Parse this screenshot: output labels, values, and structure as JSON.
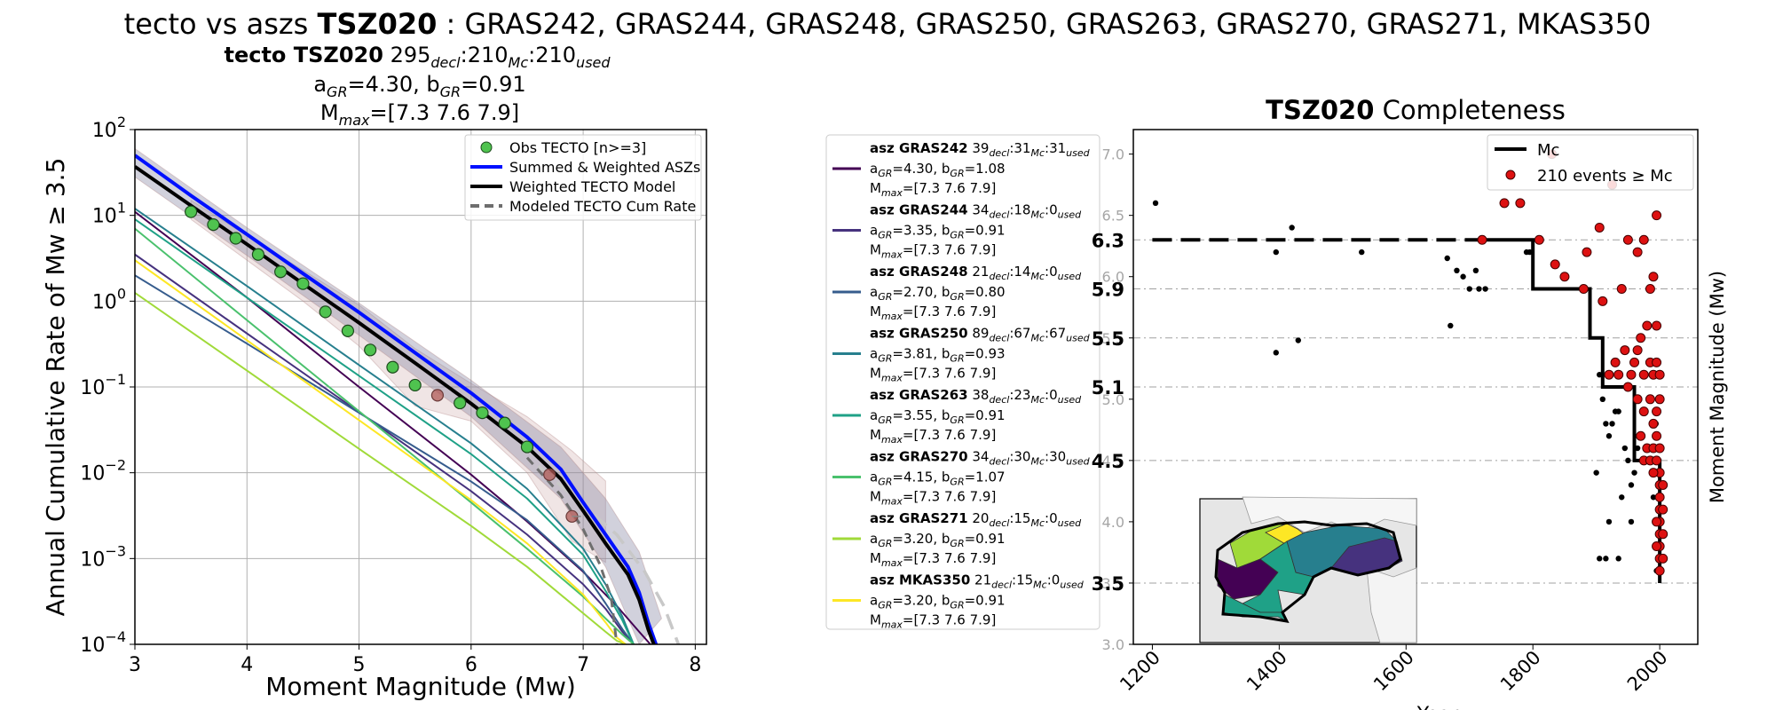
{
  "suptitle": {
    "prefix": "tecto vs aszs ",
    "zone": "TSZ020",
    "rest": " : GRAS242, GRAS244, GRAS248, GRAS250, GRAS263, GRAS270, GRAS271, MKAS350"
  },
  "left_panel": {
    "header_bold": "tecto TSZ020",
    "header_decl": "295",
    "header_mc": "210",
    "header_used": "210",
    "sub_decl": "decl",
    "sub_mc": "Mc",
    "sub_used": "used",
    "line2_a": "4.30",
    "line2_b": "0.91",
    "line3": "=[7.3 7.6 7.9]",
    "a_label": "a",
    "b_label": "b",
    "gr_sub": "GR",
    "mmax_label": "M",
    "max_sub": "max"
  },
  "colors": {
    "summed": "#0010ff",
    "weighted": "#000000",
    "modeled": "#6e6e6e",
    "obs_fill": "#4fc34f",
    "obs_excluded": "#b05a55",
    "red_event": "#dd1111"
  },
  "chart_data": [
    {
      "type": "line",
      "xlabel": "Moment Magnitude (Mw)",
      "ylabel": "Annual Cumulative Rate of Mw  ≥  3.5",
      "xlim": [
        3,
        8.1
      ],
      "ylim": [
        0.0001,
        100
      ],
      "yscale": "log",
      "xticks": [
        "3",
        "4",
        "5",
        "6",
        "7",
        "8"
      ],
      "yticks": [
        {
          "base": "10",
          "exp": "2"
        },
        {
          "base": "10",
          "exp": "1"
        },
        {
          "base": "10",
          "exp": "0"
        },
        {
          "base": "10",
          "exp": "−1"
        },
        {
          "base": "10",
          "exp": "−2"
        },
        {
          "base": "10",
          "exp": "−3"
        },
        {
          "base": "10",
          "exp": "−4"
        }
      ],
      "grid": true,
      "legend_position": "top-right",
      "legend": [
        {
          "label": "Obs TECTO [n>=3]",
          "kind": "marker",
          "color": "#4fc34f"
        },
        {
          "label": "Summed & Weighted ASZs",
          "kind": "line",
          "color": "#0010ff"
        },
        {
          "label": "Weighted TECTO Model",
          "kind": "line",
          "color": "#000000"
        },
        {
          "label": "Modeled TECTO Cum Rate",
          "kind": "dash",
          "color": "#6e6e6e"
        }
      ],
      "observed": [
        {
          "x": 3.5,
          "y": 11.0,
          "used": true
        },
        {
          "x": 3.7,
          "y": 7.8,
          "used": true
        },
        {
          "x": 3.9,
          "y": 5.4,
          "used": true
        },
        {
          "x": 4.1,
          "y": 3.5,
          "used": true
        },
        {
          "x": 4.3,
          "y": 2.2,
          "used": true
        },
        {
          "x": 4.5,
          "y": 1.6,
          "used": true
        },
        {
          "x": 4.7,
          "y": 0.75,
          "used": true
        },
        {
          "x": 4.9,
          "y": 0.45,
          "used": true
        },
        {
          "x": 5.1,
          "y": 0.27,
          "used": true
        },
        {
          "x": 5.3,
          "y": 0.17,
          "used": true
        },
        {
          "x": 5.5,
          "y": 0.105,
          "used": true
        },
        {
          "x": 5.7,
          "y": 0.08,
          "used": false
        },
        {
          "x": 5.9,
          "y": 0.065,
          "used": true
        },
        {
          "x": 6.1,
          "y": 0.05,
          "used": true
        },
        {
          "x": 6.3,
          "y": 0.038,
          "used": true
        },
        {
          "x": 6.5,
          "y": 0.02,
          "used": true
        },
        {
          "x": 6.7,
          "y": 0.0095,
          "used": false
        },
        {
          "x": 6.9,
          "y": 0.0031,
          "used": false
        }
      ],
      "series": [
        {
          "name": "Summed & Weighted ASZs",
          "color": "#0010ff",
          "width": 4,
          "x": [
            3,
            3.5,
            4,
            4.5,
            5,
            5.5,
            6,
            6.5,
            6.8,
            7.0,
            7.2,
            7.4,
            7.5,
            7.58,
            7.65
          ],
          "y": [
            50,
            17,
            6.0,
            2.1,
            0.74,
            0.25,
            0.085,
            0.026,
            0.011,
            0.0045,
            0.0019,
            0.0008,
            0.0004,
            0.00018,
            0.0001
          ]
        },
        {
          "name": "Weighted TECTO Model",
          "color": "#000000",
          "width": 4,
          "x": [
            3,
            3.5,
            4,
            4.5,
            5,
            5.5,
            6,
            6.5,
            6.8,
            7.0,
            7.2,
            7.4,
            7.5,
            7.58,
            7.63
          ],
          "y": [
            37,
            13,
            4.6,
            1.6,
            0.56,
            0.19,
            0.064,
            0.02,
            0.0085,
            0.0036,
            0.0015,
            0.00065,
            0.00033,
            0.00015,
            0.0001
          ]
        },
        {
          "name": "Modeled TECTO Cum Rate",
          "color": "#6e6e6e",
          "width": 3,
          "dash": "10,7",
          "x": [
            6.5,
            6.8,
            7.0,
            7.15,
            7.25,
            7.3
          ],
          "y": [
            0.015,
            0.0055,
            0.0022,
            0.00085,
            0.00035,
            0.0001
          ]
        },
        {
          "name": "Upper bound",
          "color": "#c8c8c8",
          "width": 3.5,
          "dash": "18,10",
          "x": [
            6.6,
            7.0,
            7.3,
            7.55,
            7.72,
            7.85
          ],
          "y": [
            0.012,
            0.0042,
            0.0019,
            0.0007,
            0.00028,
            0.0001
          ]
        },
        {
          "name": "GRAS242",
          "color": "#440154",
          "width": 2,
          "x": [
            3,
            4,
            5,
            6,
            6.5,
            7.0,
            7.3,
            7.5,
            7.6
          ],
          "y": [
            11,
            1.1,
            0.1,
            0.0095,
            0.0027,
            0.0007,
            0.00028,
            0.00014,
            0.0001
          ]
        },
        {
          "name": "GRAS244",
          "color": "#46327e",
          "width": 2,
          "x": [
            3,
            4,
            5,
            6,
            6.5,
            7.0,
            7.2,
            7.35,
            7.45
          ],
          "y": [
            3.5,
            0.42,
            0.051,
            0.0061,
            0.0019,
            0.0005,
            0.00026,
            0.00014,
            0.0001
          ]
        },
        {
          "name": "GRAS248",
          "color": "#365c8d",
          "width": 2,
          "x": [
            3,
            4,
            5,
            6,
            6.5,
            7.0,
            7.2,
            7.35,
            7.45
          ],
          "y": [
            2.0,
            0.32,
            0.05,
            0.0079,
            0.0028,
            0.00072,
            0.0003,
            0.00015,
            0.0001
          ]
        },
        {
          "name": "GRAS250",
          "color": "#277f8e",
          "width": 2,
          "x": [
            3,
            4,
            5,
            6,
            6.5,
            7.0,
            7.2,
            7.35,
            7.45
          ],
          "y": [
            12,
            1.5,
            0.18,
            0.022,
            0.0065,
            0.0013,
            0.0005,
            0.00021,
            0.0001
          ]
        },
        {
          "name": "GRAS263",
          "color": "#1fa187",
          "width": 2,
          "x": [
            3,
            4,
            5,
            6,
            6.5,
            7.0,
            7.2,
            7.35,
            7.45
          ],
          "y": [
            9.0,
            1.1,
            0.135,
            0.0165,
            0.005,
            0.0011,
            0.00042,
            0.00019,
            0.0001
          ]
        },
        {
          "name": "GRAS270",
          "color": "#4ac16d",
          "width": 2,
          "x": [
            3,
            4,
            5,
            6,
            6.5,
            7.0,
            7.2,
            7.35,
            7.45
          ],
          "y": [
            7.0,
            0.6,
            0.052,
            0.0045,
            0.0013,
            0.00036,
            0.0002,
            0.00013,
            0.0001
          ]
        },
        {
          "name": "GRAS271",
          "color": "#a0da39",
          "width": 2,
          "x": [
            3,
            4,
            5,
            6,
            6.5,
            7.0,
            7.2,
            7.3,
            7.38
          ],
          "y": [
            1.25,
            0.155,
            0.019,
            0.0024,
            0.0008,
            0.00023,
            0.00014,
            0.00011,
            0.0001
          ]
        },
        {
          "name": "MKAS350",
          "color": "#fde725",
          "width": 2,
          "x": [
            3,
            4,
            5,
            6,
            6.5,
            7.0,
            7.2,
            7.3,
            7.38
          ],
          "y": [
            3.0,
            0.35,
            0.041,
            0.0048,
            0.0015,
            0.00038,
            0.00018,
            0.00012,
            0.0001
          ]
        }
      ]
    },
    {
      "type": "scatter",
      "title": "TSZ020",
      "title_rest": " Completeness",
      "xlabel": "Year",
      "ylabel": "Moment Magnitude (Mw)",
      "xlim": [
        1170,
        2060
      ],
      "ylim": [
        3.0,
        7.2
      ],
      "xticks": [
        "1200",
        "1400",
        "1600",
        "1800",
        "2000"
      ],
      "yticks": [
        "3.0",
        "3.5",
        "4.0",
        "4.5",
        "5.0",
        "5.5",
        "6.0",
        "6.5",
        "7.0"
      ],
      "mc_levels": [
        "6.3",
        "5.9",
        "5.5",
        "5.1",
        "4.5",
        "3.5"
      ],
      "legend_position": "top-right",
      "legend": [
        {
          "label": "Mc",
          "kind": "line",
          "color": "#000000"
        },
        {
          "label": "210 events  ≥  Mc",
          "kind": "marker",
          "color": "#dd1111"
        }
      ],
      "mc_step": {
        "x": [
          1200,
          1800,
          1800,
          1890,
          1890,
          1910,
          1910,
          1960,
          1960,
          2000,
          2000
        ],
        "y": [
          6.3,
          6.3,
          5.9,
          5.9,
          5.5,
          5.5,
          5.1,
          5.1,
          4.5,
          4.5,
          3.5
        ]
      },
      "black_events": [
        [
          1205,
          6.6
        ],
        [
          1395,
          6.2
        ],
        [
          1420,
          6.4
        ],
        [
          1530,
          6.2
        ],
        [
          1395,
          5.38
        ],
        [
          1430,
          5.48
        ],
        [
          1665,
          6.15
        ],
        [
          1680,
          6.05
        ],
        [
          1690,
          6.0
        ],
        [
          1700,
          5.9
        ],
        [
          1710,
          6.05
        ],
        [
          1715,
          5.9
        ],
        [
          1725,
          5.9
        ],
        [
          1790,
          6.2
        ],
        [
          1795,
          6.2
        ],
        [
          1670,
          5.6
        ],
        [
          1900,
          4.4
        ],
        [
          1905,
          5.2
        ],
        [
          1910,
          5.0
        ],
        [
          1915,
          4.8
        ],
        [
          1920,
          4.7
        ],
        [
          1925,
          4.8
        ],
        [
          1930,
          4.9
        ],
        [
          1935,
          4.9
        ],
        [
          1940,
          4.2
        ],
        [
          1945,
          4.6
        ],
        [
          1950,
          4.5
        ],
        [
          1955,
          4.3
        ],
        [
          1960,
          4.4
        ],
        [
          1965,
          4.6
        ],
        [
          1905,
          3.7
        ],
        [
          1915,
          3.7
        ],
        [
          1920,
          4.0
        ],
        [
          1935,
          3.7
        ],
        [
          1955,
          4.0
        ],
        [
          1995,
          3.6
        ],
        [
          1998,
          3.7
        ],
        [
          1990,
          4.2
        ],
        [
          1992,
          4.6
        ],
        [
          1994,
          4.8
        ]
      ],
      "red_events": [
        [
          1720,
          6.3
        ],
        [
          1755,
          6.6
        ],
        [
          1780,
          6.6
        ],
        [
          1810,
          6.3
        ],
        [
          1835,
          6.1
        ],
        [
          1850,
          6.0
        ],
        [
          1830,
          7.0
        ],
        [
          1880,
          5.9
        ],
        [
          1885,
          6.2
        ],
        [
          1905,
          6.4
        ],
        [
          1925,
          6.75
        ],
        [
          1950,
          6.3
        ],
        [
          1975,
          6.3
        ],
        [
          1995,
          6.5
        ],
        [
          1910,
          5.8
        ],
        [
          1940,
          5.9
        ],
        [
          1965,
          6.2
        ],
        [
          1985,
          5.9
        ],
        [
          1990,
          6.0
        ],
        [
          1995,
          5.6
        ],
        [
          1930,
          5.3
        ],
        [
          1945,
          5.4
        ],
        [
          1955,
          5.2
        ],
        [
          1960,
          5.3
        ],
        [
          1965,
          5.4
        ],
        [
          1975,
          5.2
        ],
        [
          1985,
          5.3
        ],
        [
          1990,
          5.2
        ],
        [
          1995,
          5.3
        ],
        [
          2000,
          5.2
        ],
        [
          1920,
          5.2
        ],
        [
          1935,
          5.2
        ],
        [
          1950,
          5.1
        ],
        [
          1970,
          5.5
        ],
        [
          1980,
          5.6
        ],
        [
          1965,
          5.0
        ],
        [
          1975,
          4.9
        ],
        [
          1985,
          5.0
        ],
        [
          1990,
          4.8
        ],
        [
          1995,
          4.9
        ],
        [
          2000,
          5.0
        ],
        [
          1970,
          4.7
        ],
        [
          1980,
          4.6
        ],
        [
          1990,
          4.6
        ],
        [
          1995,
          4.7
        ],
        [
          2000,
          4.6
        ],
        [
          1975,
          4.5
        ],
        [
          1985,
          4.5
        ],
        [
          1995,
          4.5
        ],
        [
          2000,
          4.4
        ],
        [
          2000,
          4.3
        ],
        [
          2000,
          4.2
        ],
        [
          2000,
          4.1
        ],
        [
          2000,
          4.0
        ],
        [
          2000,
          3.9
        ],
        [
          2000,
          3.8
        ],
        [
          2000,
          3.7
        ],
        [
          2000,
          3.6
        ],
        [
          1995,
          4.0
        ],
        [
          1995,
          3.8
        ],
        [
          2005,
          4.1
        ],
        [
          2005,
          3.9
        ],
        [
          2005,
          3.7
        ],
        [
          2005,
          4.3
        ],
        [
          1990,
          4.4
        ]
      ]
    }
  ],
  "asz_legend": [
    {
      "name": "GRAS242",
      "color": "#440154",
      "decl": "39",
      "mc": "31",
      "used": "31",
      "a": "4.30",
      "b": "1.08",
      "mmax": "=[7.3 7.6 7.9]"
    },
    {
      "name": "GRAS244",
      "color": "#46327e",
      "decl": "34",
      "mc": "18",
      "used": "0",
      "a": "3.35",
      "b": "0.91",
      "mmax": "=[7.3 7.6 7.9]"
    },
    {
      "name": "GRAS248",
      "color": "#365c8d",
      "decl": "21",
      "mc": "14",
      "used": "0",
      "a": "2.70",
      "b": "0.80",
      "mmax": "=[7.3 7.6 7.9]"
    },
    {
      "name": "GRAS250",
      "color": "#277f8e",
      "decl": "89",
      "mc": "67",
      "used": "67",
      "a": "3.81",
      "b": "0.93",
      "mmax": "=[7.3 7.6 7.9]"
    },
    {
      "name": "GRAS263",
      "color": "#1fa187",
      "decl": "38",
      "mc": "23",
      "used": "0",
      "a": "3.55",
      "b": "0.91",
      "mmax": "=[7.3 7.6 7.9]"
    },
    {
      "name": "GRAS270",
      "color": "#4ac16d",
      "decl": "34",
      "mc": "30",
      "used": "30",
      "a": "4.15",
      "b": "1.07",
      "mmax": "=[7.3 7.6 7.9]"
    },
    {
      "name": "GRAS271",
      "color": "#a0da39",
      "decl": "20",
      "mc": "15",
      "used": "0",
      "a": "3.20",
      "b": "0.91",
      "mmax": "=[7.3 7.6 7.9]"
    },
    {
      "name": "MKAS350",
      "color": "#fde725",
      "decl": "21",
      "mc": "15",
      "used": "0",
      "a": "3.20",
      "b": "0.91",
      "mmax": "=[7.3 7.6 7.9]"
    }
  ],
  "asz_prefix": "asz "
}
